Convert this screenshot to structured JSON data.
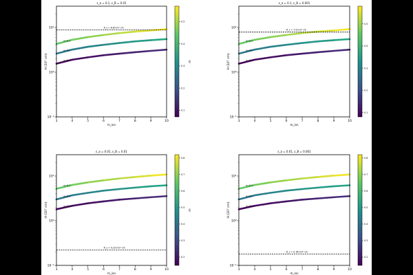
{
  "chart_data": [
    {
      "type": "line",
      "title": "ε_a = 0.1, ε_B = 0.01",
      "xlabel": "m_ion",
      "ylabel": "H (10⁷ cm)",
      "xlim": [
        3,
        10
      ],
      "ylim": [
        0.1,
        30
      ],
      "yscale": "log",
      "xticks": [
        "3",
        "4",
        "5",
        "6",
        "7",
        "8",
        "9",
        "10"
      ],
      "yticks": [
        {
          "v": 0.1,
          "label": "10⁻¹"
        },
        {
          "v": 1,
          "label": "10⁰"
        },
        {
          "v": 10,
          "label": "10¹"
        }
      ],
      "x": [
        3,
        4,
        5,
        6,
        7,
        8,
        9,
        10
      ],
      "series": [
        {
          "name": "a=0.1",
          "values": [
            4.3,
            5.3,
            6.1,
            6.8,
            7.5,
            8.1,
            8.6,
            9.2
          ],
          "color_start": "#55c667",
          "color_end": "#fde725"
        },
        {
          "name": "a=0.5",
          "values": [
            2.6,
            3.2,
            3.7,
            4.1,
            4.5,
            4.9,
            5.2,
            5.5
          ],
          "color_start": "#2c728e",
          "color_end": "#22a884"
        },
        {
          "name": "a=0.9",
          "values": [
            1.55,
            1.9,
            2.15,
            2.4,
            2.6,
            2.8,
            3.0,
            3.2
          ],
          "color_start": "#440154",
          "color_end": "#472f7d"
        }
      ],
      "hline": {
        "value": 8.8,
        "label": "R_s = 8.8×10⁷ cm"
      },
      "colorbar": {
        "label": "m",
        "ticks": [
          0.1,
          0.2,
          0.3,
          0.4,
          0.5
        ],
        "min": 0.07,
        "max": 0.57
      }
    },
    {
      "type": "line",
      "title": "ε_a = 0.1, ε_B = 0.001",
      "xlabel": "m_ion",
      "ylabel": "H (10⁷ cm)",
      "xlim": [
        3,
        10
      ],
      "ylim": [
        0.1,
        30
      ],
      "yscale": "log",
      "xticks": [
        "3",
        "4",
        "5",
        "6",
        "7",
        "8",
        "9",
        "10"
      ],
      "yticks": [
        {
          "v": 0.1,
          "label": "10⁻¹"
        },
        {
          "v": 1,
          "label": "10⁰"
        },
        {
          "v": 10,
          "label": "10¹"
        }
      ],
      "x": [
        3,
        4,
        5,
        6,
        7,
        8,
        9,
        10
      ],
      "series": [
        {
          "name": "a=0.1",
          "values": [
            4.3,
            5.3,
            6.1,
            6.8,
            7.5,
            8.1,
            8.6,
            9.2
          ],
          "color_start": "#55c667",
          "color_end": "#fde725"
        },
        {
          "name": "a=0.5",
          "values": [
            2.6,
            3.2,
            3.7,
            4.1,
            4.5,
            4.9,
            5.2,
            5.5
          ],
          "color_start": "#2c728e",
          "color_end": "#22a884"
        },
        {
          "name": "a=0.9",
          "values": [
            1.55,
            1.9,
            2.15,
            2.4,
            2.6,
            2.8,
            3.0,
            3.2
          ],
          "color_start": "#440154",
          "color_end": "#472f7d"
        }
      ],
      "hline": {
        "value": 7.9,
        "label": "R_s = 7.9×10⁷ cm"
      },
      "colorbar": {
        "label": "m",
        "ticks": [
          0.1,
          0.2,
          0.3,
          0.4,
          0.5
        ],
        "min": 0.08,
        "max": 0.58
      }
    },
    {
      "type": "line",
      "title": "ε_a = 0.01, ε_B = 0.01",
      "xlabel": "m_ion",
      "ylabel": "H (10⁷ cm)",
      "xlim": [
        3,
        10
      ],
      "ylim": [
        0.1,
        30
      ],
      "yscale": "log",
      "xticks": [
        "3",
        "4",
        "5",
        "6",
        "7",
        "8",
        "9",
        "10"
      ],
      "yticks": [
        {
          "v": 0.1,
          "label": "10⁻¹"
        },
        {
          "v": 1,
          "label": "10⁰"
        },
        {
          "v": 10,
          "label": "10¹"
        }
      ],
      "x": [
        3,
        4,
        5,
        6,
        7,
        8,
        9,
        10
      ],
      "series": [
        {
          "name": "a=0.1",
          "values": [
            5.2,
            6.3,
            7.2,
            8.0,
            8.8,
            9.5,
            10.2,
            10.8
          ],
          "color_start": "#55c667",
          "color_end": "#fde725"
        },
        {
          "name": "a=0.5",
          "values": [
            3.0,
            3.7,
            4.2,
            4.7,
            5.1,
            5.5,
            5.9,
            6.2
          ],
          "color_start": "#2c728e",
          "color_end": "#22a884"
        },
        {
          "name": "a=0.9",
          "values": [
            1.8,
            2.15,
            2.45,
            2.7,
            2.95,
            3.15,
            3.35,
            3.55
          ],
          "color_start": "#440154",
          "color_end": "#472f7d"
        }
      ],
      "hline": {
        "value": 0.22,
        "label": "R_s = 0.22×10⁷ cm"
      },
      "colorbar": {
        "label": "m",
        "ticks": [
          0.2,
          0.3,
          0.4,
          0.5,
          0.6,
          0.7,
          0.8
        ],
        "min": 0.15,
        "max": 0.82
      }
    },
    {
      "type": "line",
      "title": "ε_a = 0.01, ε_B = 0.001",
      "xlabel": "m_ion",
      "ylabel": "H (10⁷ cm)",
      "xlim": [
        3,
        10
      ],
      "ylim": [
        0.1,
        30
      ],
      "yscale": "log",
      "xticks": [
        "3",
        "4",
        "5",
        "6",
        "7",
        "8",
        "9",
        "10"
      ],
      "yticks": [
        {
          "v": 0.1,
          "label": "10⁻¹"
        },
        {
          "v": 1,
          "label": "10⁰"
        },
        {
          "v": 10,
          "label": "10¹"
        }
      ],
      "x": [
        3,
        4,
        5,
        6,
        7,
        8,
        9,
        10
      ],
      "series": [
        {
          "name": "a=0.1",
          "values": [
            5.2,
            6.3,
            7.2,
            8.0,
            8.8,
            9.5,
            10.2,
            10.8
          ],
          "color_start": "#55c667",
          "color_end": "#fde725"
        },
        {
          "name": "a=0.5",
          "values": [
            3.0,
            3.7,
            4.2,
            4.7,
            5.1,
            5.5,
            5.9,
            6.2
          ],
          "color_start": "#2c728e",
          "color_end": "#22a884"
        },
        {
          "name": "a=0.9",
          "values": [
            1.8,
            2.15,
            2.45,
            2.7,
            2.95,
            3.15,
            3.35,
            3.55
          ],
          "color_start": "#440154",
          "color_end": "#472f7d"
        }
      ],
      "hline": {
        "value": 0.18,
        "label": "R_s = 0.18×10⁷ cm"
      },
      "colorbar": {
        "label": "m",
        "ticks": [
          0.2,
          0.3,
          0.4,
          0.5,
          0.6,
          0.7,
          0.8
        ],
        "min": 0.15,
        "max": 0.82
      }
    }
  ]
}
